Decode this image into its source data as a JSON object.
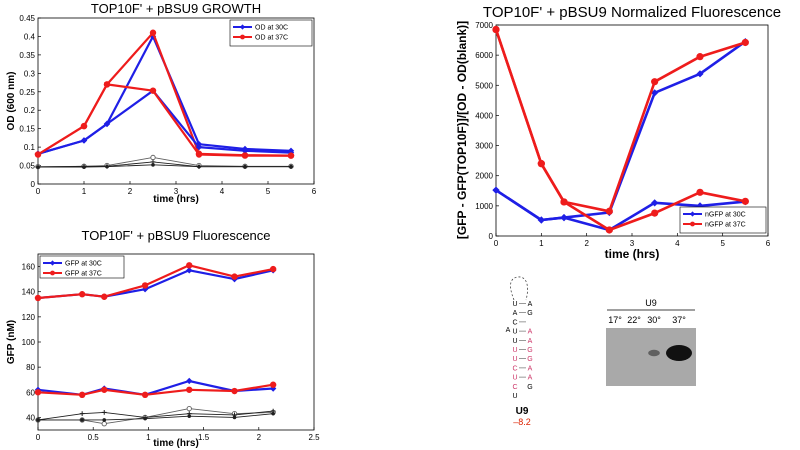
{
  "colors": {
    "blue": "#1f1fe6",
    "red": "#ee1c1c",
    "grey": "#606060",
    "black": "#202020"
  },
  "chart_data": [
    {
      "id": "growth",
      "type": "line",
      "title": "TOP10F' + pBSU9 GROWTH",
      "xlabel": "time (hrs)",
      "ylabel": "OD (600 nm)",
      "xlim": [
        0,
        6
      ],
      "ylim": [
        0,
        0.45
      ],
      "xticks": [
        "0",
        "1",
        "2",
        "3",
        "4",
        "5",
        "6"
      ],
      "yticks": [
        "0",
        "0.05",
        "0.1",
        "0.15",
        "0.2",
        "0.25",
        "0.3",
        "0.35",
        "0.4",
        "0.45"
      ],
      "legend_position": "top-right",
      "series": [
        {
          "name": "OD at 30C",
          "color": "blue",
          "marker": "diamond",
          "legend": true,
          "x": [
            0,
            1,
            1.5,
            2.5,
            3.5,
            4.5,
            5.5
          ],
          "y": [
            0.082,
            0.118,
            0.163,
            0.4,
            0.108,
            0.095,
            0.09
          ]
        },
        {
          "name": "OD at 37C",
          "color": "red",
          "marker": "circle",
          "legend": true,
          "x": [
            0,
            1,
            1.5,
            2.5,
            3.5,
            4.5,
            5.5
          ],
          "y": [
            0.08,
            0.157,
            0.27,
            0.41,
            0.082,
            0.078,
            0.077
          ]
        },
        {
          "color": "blue",
          "marker": "diamond",
          "x": [
            0,
            1,
            1.5,
            2.5,
            3.5,
            4.5,
            5.5
          ],
          "y": [
            0.082,
            0.118,
            0.163,
            0.253,
            0.1,
            0.09,
            0.085
          ]
        },
        {
          "color": "red",
          "marker": "circle",
          "x": [
            0,
            1,
            1.5,
            2.5,
            3.5,
            4.5,
            5.5
          ],
          "y": [
            0.08,
            0.157,
            0.27,
            0.253,
            0.08,
            0.077,
            0.077
          ]
        },
        {
          "color": "grey",
          "marker": "open-circle",
          "x": [
            0,
            1,
            1.5,
            2.5,
            3.5,
            4.5,
            5.5
          ],
          "y": [
            0.047,
            0.048,
            0.05,
            0.072,
            0.05,
            0.048,
            0.048
          ]
        },
        {
          "color": "black",
          "marker": "star",
          "x": [
            0,
            1,
            1.5,
            2.5,
            3.5,
            4.5,
            5.5
          ],
          "y": [
            0.046,
            0.048,
            0.048,
            0.06,
            0.047,
            0.047,
            0.047
          ]
        },
        {
          "color": "black",
          "marker": "circle-small",
          "x": [
            0,
            1,
            1.5,
            2.5,
            3.5,
            4.5,
            5.5
          ],
          "y": [
            0.046,
            0.046,
            0.047,
            0.052,
            0.047,
            0.047,
            0.047
          ]
        }
      ]
    },
    {
      "id": "fluor",
      "type": "line",
      "title": "TOP10F' + pBSU9 Fluorescence",
      "xlabel": "time (hrs)",
      "ylabel": "GFP (nM)",
      "xlim": [
        0,
        2.5
      ],
      "ylim": [
        30,
        170
      ],
      "xticks": [
        "0",
        "0.5",
        "1",
        "1.5",
        "2",
        "2.5"
      ],
      "yticks": [
        "40",
        "60",
        "80",
        "100",
        "120",
        "140",
        "160"
      ],
      "legend_position": "top-left",
      "series": [
        {
          "name": "GFP at 30C",
          "color": "blue",
          "marker": "diamond",
          "legend": true,
          "x": [
            0,
            0.4,
            0.6,
            0.97,
            1.37,
            1.78,
            2.13
          ],
          "y": [
            135,
            138,
            136,
            142,
            157,
            150,
            157
          ]
        },
        {
          "name": "GFP at 37C",
          "color": "red",
          "marker": "circle",
          "legend": true,
          "x": [
            0,
            0.4,
            0.6,
            0.97,
            1.37,
            1.78,
            2.13
          ],
          "y": [
            135,
            138,
            136,
            145,
            161,
            152,
            158
          ]
        },
        {
          "color": "blue",
          "marker": "diamond",
          "x": [
            0,
            0.4,
            0.6,
            0.97,
            1.37,
            1.78,
            2.13
          ],
          "y": [
            62,
            58,
            63,
            58,
            69,
            61,
            63
          ]
        },
        {
          "color": "red",
          "marker": "circle",
          "x": [
            0,
            0.4,
            0.6,
            0.97,
            1.37,
            1.78,
            2.13
          ],
          "y": [
            60,
            58,
            62,
            58,
            62,
            61,
            66
          ]
        },
        {
          "color": "grey",
          "marker": "open-circle",
          "x": [
            0,
            0.4,
            0.6,
            0.97,
            1.37,
            1.78,
            2.13
          ],
          "y": [
            38,
            38,
            35,
            40,
            47,
            43,
            44
          ]
        },
        {
          "color": "black",
          "marker": "star",
          "x": [
            0,
            0.4,
            0.6,
            0.97,
            1.37,
            1.78,
            2.13
          ],
          "y": [
            38,
            43,
            44,
            40,
            43,
            42,
            45
          ]
        },
        {
          "color": "black",
          "marker": "circle-small",
          "x": [
            0,
            0.4,
            0.6,
            0.97,
            1.37,
            1.78,
            2.13
          ],
          "y": [
            38,
            38,
            38,
            39,
            41,
            40,
            43
          ]
        }
      ]
    },
    {
      "id": "norm",
      "type": "line",
      "title": "TOP10F' + pBSU9 Normalized Fluorescence",
      "xlabel": "time (hrs)",
      "ylabel": "[GFP - GFP(TOP10F)]/[OD - OD(blank)]",
      "xlim": [
        0,
        6
      ],
      "ylim": [
        0,
        7000
      ],
      "xticks": [
        "0",
        "1",
        "2",
        "3",
        "4",
        "5",
        "6"
      ],
      "yticks": [
        "0",
        "1000",
        "2000",
        "3000",
        "4000",
        "5000",
        "6000",
        "7000"
      ],
      "legend_position": "bottom-right",
      "series": [
        {
          "name": "nGFP at 30C",
          "color": "blue",
          "marker": "diamond",
          "legend": true,
          "x": [
            0,
            1,
            1.5,
            2.5,
            3.5,
            4.5,
            5.5
          ],
          "y": [
            1520,
            530,
            610,
            780,
            4750,
            5380,
            6450
          ]
        },
        {
          "name": "nGFP at 37C",
          "color": "red",
          "marker": "circle",
          "legend": true,
          "x": [
            0,
            1,
            1.5,
            2.5,
            3.5,
            4.5,
            5.5
          ],
          "y": [
            6850,
            2400,
            1130,
            820,
            5120,
            5950,
            6420
          ]
        },
        {
          "color": "blue",
          "marker": "diamond",
          "x": [
            0,
            1,
            1.5,
            2.5,
            3.5,
            4.5,
            5.5
          ],
          "y": [
            1520,
            530,
            610,
            200,
            1100,
            1000,
            1140
          ]
        },
        {
          "color": "red",
          "marker": "circle",
          "x": [
            0,
            1,
            1.5,
            2.5,
            3.5,
            4.5,
            5.5
          ],
          "y": [
            6850,
            2400,
            1130,
            200,
            760,
            1450,
            1150
          ]
        }
      ]
    }
  ],
  "rna": {
    "left_strand": [
      "U",
      "A",
      "C",
      "U",
      "U",
      "U",
      "U",
      "C",
      "U",
      "C",
      "U"
    ],
    "right_strand": [
      "A",
      "G",
      "A",
      "A",
      "G",
      "G",
      "A",
      "A",
      "G"
    ],
    "bulge": "A",
    "label": "U9",
    "energy": "–8.2"
  },
  "blot": {
    "label": "U9",
    "lanes": [
      "17°",
      "22°",
      "30°",
      "37°"
    ],
    "band_intensity": [
      0,
      0,
      0.2,
      1
    ]
  }
}
